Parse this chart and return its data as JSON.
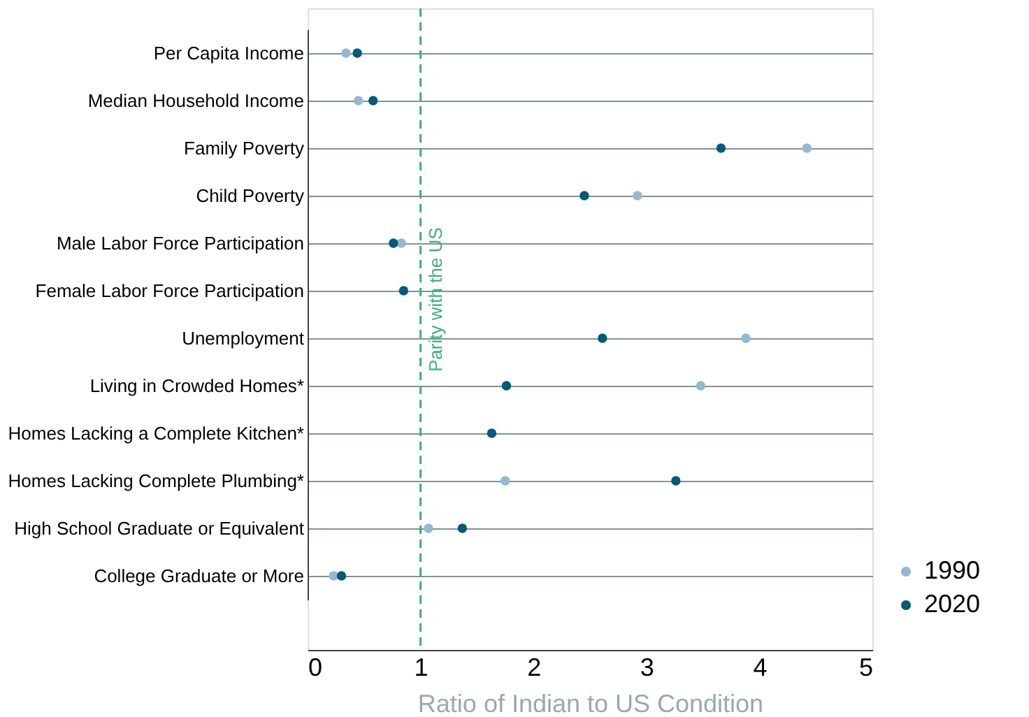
{
  "chart_data": {
    "type": "scatter",
    "orientation": "horizontal",
    "xlabel": "Ratio of Indian to US Condition",
    "categories": [
      "Per Capita Income",
      "Median Household Income",
      "Family Poverty",
      "Child Poverty",
      "Male Labor Force Participation",
      "Female Labor Force Participation",
      "Unemployment",
      "Living in Crowded Homes*",
      "Homes Lacking a Complete Kitchen*",
      "Homes Lacking Complete Plumbing*",
      "High School Graduate or Equivalent",
      "College Graduate or More"
    ],
    "series": [
      {
        "name": "1990",
        "color": "#94b8d0",
        "values": [
          0.34,
          0.45,
          4.42,
          2.92,
          0.83,
          null,
          3.88,
          3.48,
          null,
          1.75,
          1.07,
          0.23
        ]
      },
      {
        "name": "2020",
        "color": "#005a78",
        "values": [
          0.44,
          0.58,
          3.66,
          2.45,
          0.76,
          0.85,
          2.61,
          1.76,
          1.63,
          3.26,
          1.37,
          0.3
        ]
      }
    ],
    "xlim": [
      0,
      5
    ],
    "xticks": [
      0,
      1,
      2,
      3,
      4,
      5
    ],
    "grid": "y",
    "legend": "bottom right",
    "marker": "circle",
    "ref_lines": [
      {
        "axis": "x",
        "value": 1,
        "label": "Parity with the US",
        "color": "#3fae7a",
        "line_style": "dashed"
      }
    ]
  }
}
